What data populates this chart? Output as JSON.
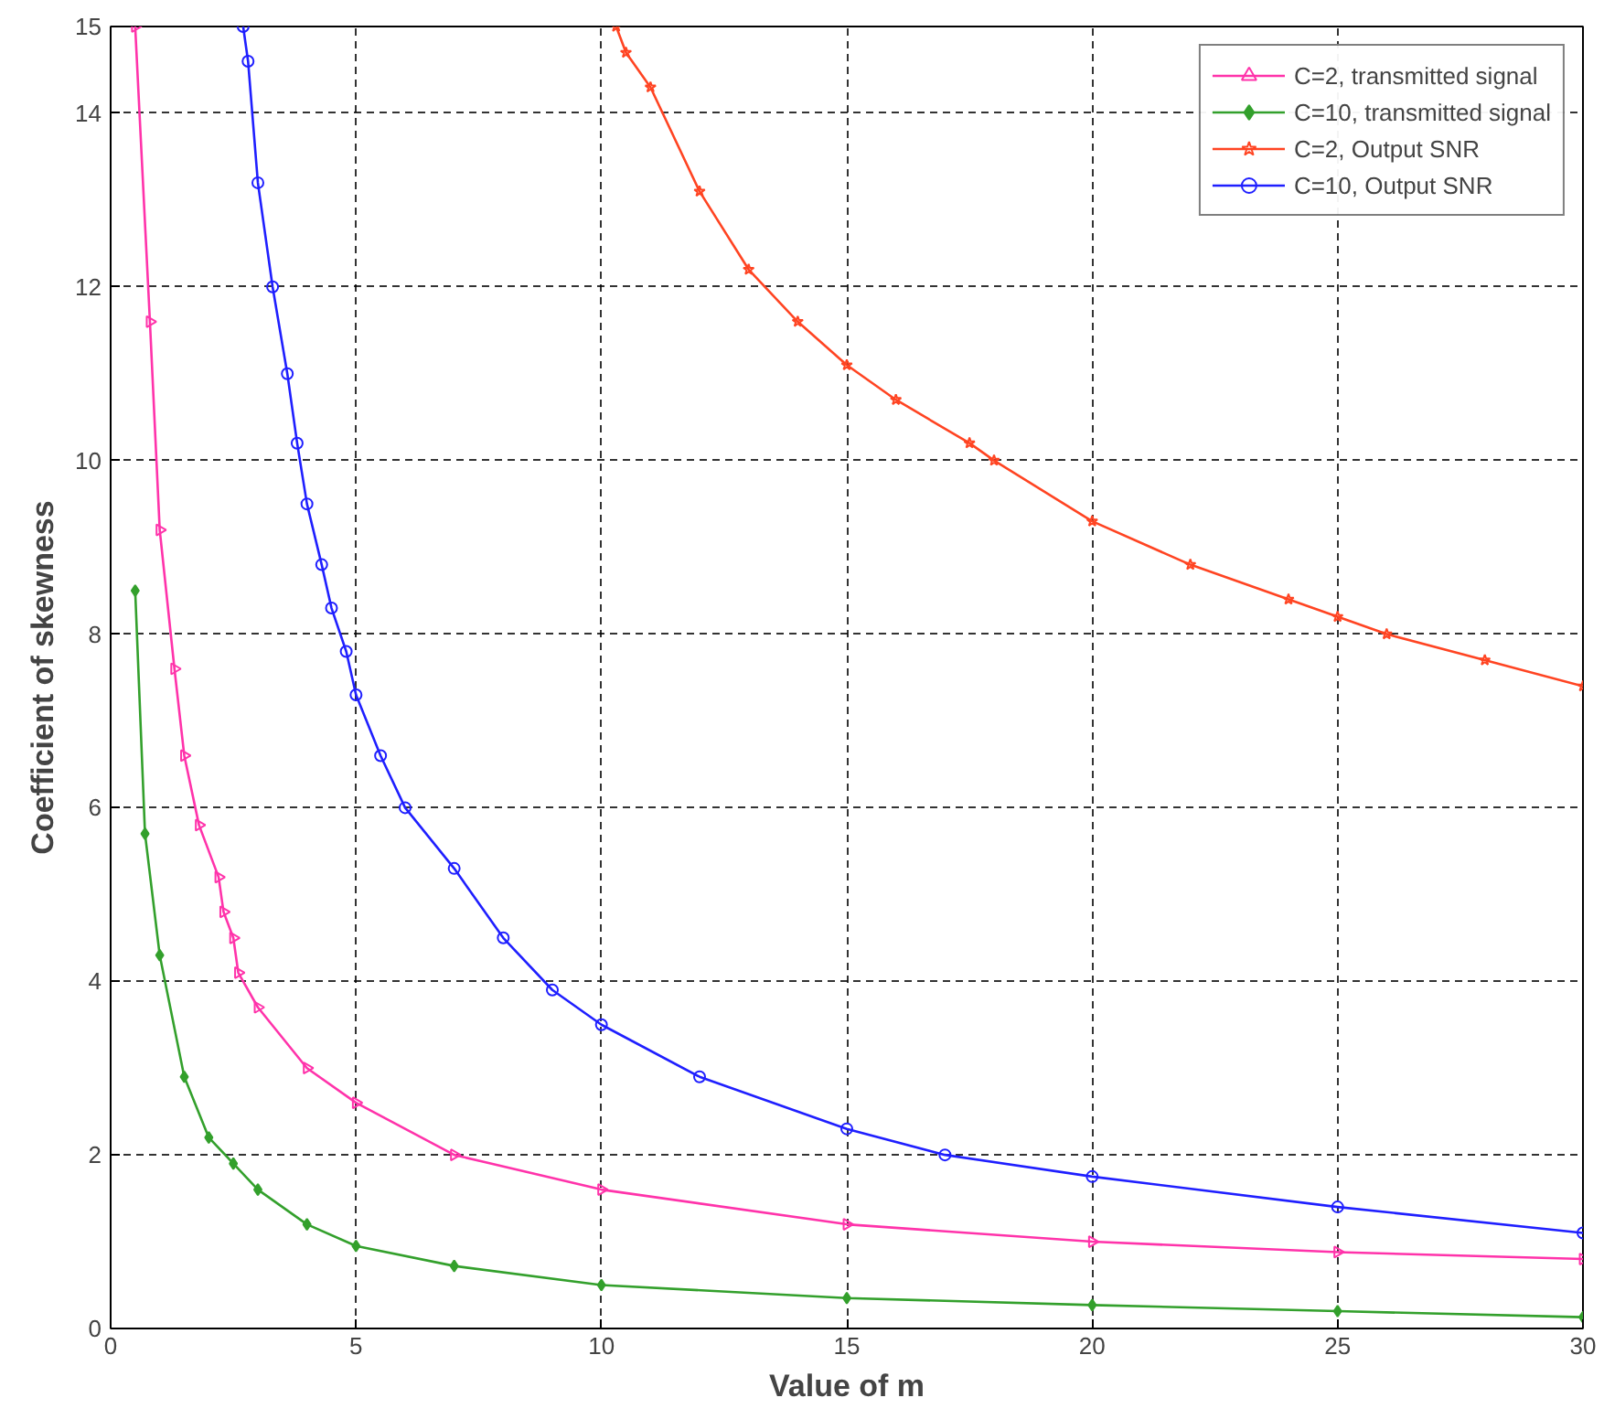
{
  "chart_data": {
    "type": "line",
    "xlabel": "Value of m",
    "ylabel": "Coefficient of skewness",
    "xlim": [
      0,
      30
    ],
    "ylim": [
      0,
      15
    ],
    "xticks": [
      0,
      5,
      10,
      15,
      20,
      25,
      30
    ],
    "yticks": [
      0,
      2,
      4,
      6,
      8,
      10,
      12,
      14,
      15
    ],
    "grid": true,
    "legend": "top right",
    "series": [
      {
        "name": "C=2, transmitted signal",
        "color": "#ff33aa",
        "marker": "triangle",
        "x": [
          0.5,
          0.8,
          1.0,
          1.3,
          1.5,
          1.8,
          2.2,
          2.3,
          2.5,
          2.6,
          3,
          4,
          5,
          7,
          10,
          15,
          20,
          25,
          30
        ],
        "values": [
          15,
          11.6,
          9.2,
          7.6,
          6.6,
          5.8,
          5.2,
          4.8,
          4.5,
          4.1,
          3.7,
          3.0,
          2.6,
          2.0,
          1.6,
          1.2,
          1.0,
          0.88,
          0.8
        ]
      },
      {
        "name": "C=10, transmitted signal",
        "color": "#33a02c",
        "marker": "diamond",
        "x": [
          0.5,
          0.7,
          1.0,
          1.5,
          2,
          2.5,
          3,
          4,
          5,
          7,
          10,
          15,
          20,
          25,
          30
        ],
        "values": [
          8.5,
          5.7,
          4.3,
          2.9,
          2.2,
          1.9,
          1.6,
          1.2,
          0.95,
          0.72,
          0.5,
          0.35,
          0.27,
          0.2,
          0.13
        ]
      },
      {
        "name": "C=2, Output SNR",
        "color": "#ff4422",
        "marker": "star",
        "x": [
          10.3,
          10.5,
          11,
          12,
          13,
          14,
          15,
          16,
          17.5,
          18,
          20,
          22,
          24,
          25,
          26,
          28,
          30
        ],
        "values": [
          15,
          14.7,
          14.3,
          13.1,
          12.2,
          11.6,
          11.1,
          10.7,
          10.2,
          10.0,
          9.3,
          8.8,
          8.4,
          8.2,
          8.0,
          7.7,
          7.4
        ]
      },
      {
        "name": "C=10, Output SNR",
        "color": "#1f1fff",
        "marker": "circle",
        "x": [
          2.7,
          2.8,
          3,
          3.3,
          3.6,
          3.8,
          4,
          4.3,
          4.5,
          4.8,
          5,
          5.5,
          6,
          7,
          8,
          9,
          10,
          12,
          15,
          17,
          20,
          25,
          30
        ],
        "values": [
          15,
          14.6,
          13.2,
          12.0,
          11.0,
          10.2,
          9.5,
          8.8,
          8.3,
          7.8,
          7.3,
          6.6,
          6.0,
          5.3,
          4.5,
          3.9,
          3.5,
          2.9,
          2.3,
          2.0,
          1.75,
          1.4,
          1.1
        ]
      }
    ]
  }
}
